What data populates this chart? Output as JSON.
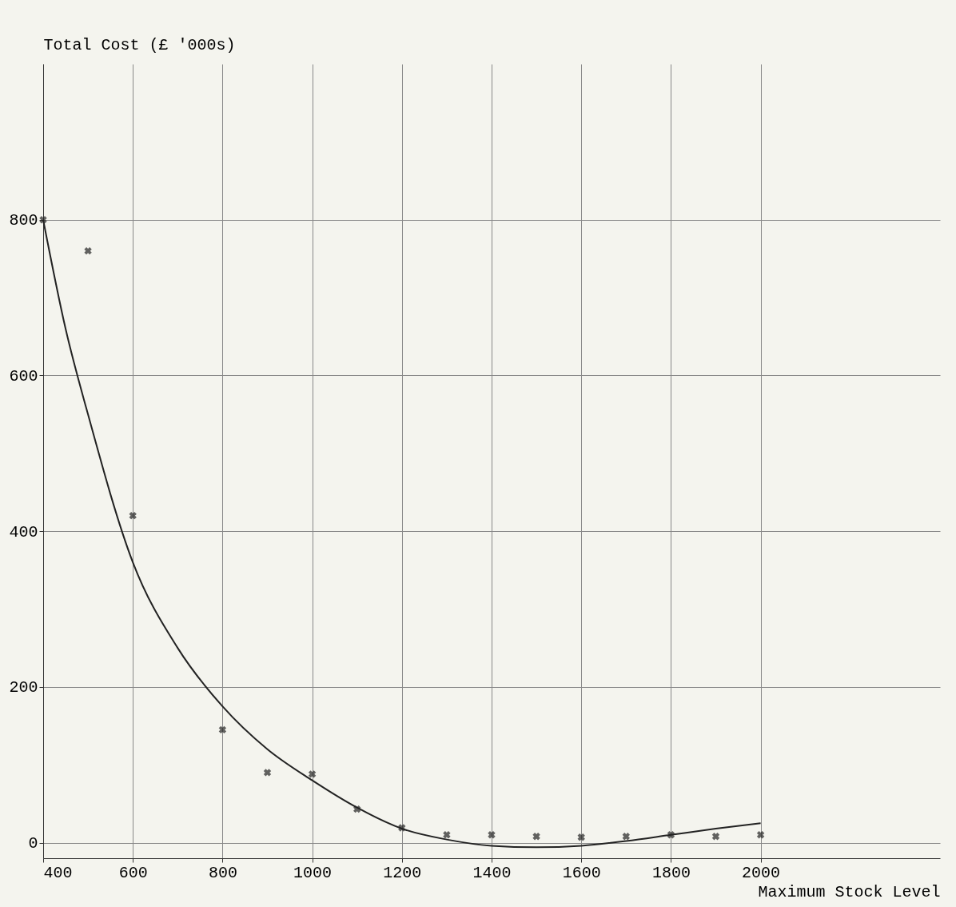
{
  "chart_data": {
    "type": "scatter",
    "xlabel": "Maximum Stock Level",
    "ylabel": "Total Cost (£ '000s)",
    "xlim": [
      400,
      2400
    ],
    "ylim": [
      -20,
      1000
    ],
    "xticks": [
      400,
      600,
      800,
      1000,
      1200,
      1400,
      1600,
      1800,
      2000
    ],
    "yticks": [
      0,
      200,
      400,
      600,
      800
    ],
    "grid": true,
    "series": [
      {
        "marker": "cross",
        "color": "#222222",
        "x": [
          400,
          500,
          600,
          800,
          900,
          1000,
          1100,
          1200,
          1300,
          1400,
          1500,
          1600,
          1700,
          1800,
          1900,
          2000
        ],
        "values": [
          800,
          760,
          420,
          145,
          90,
          88,
          43,
          19,
          10,
          10,
          8,
          7,
          8,
          10,
          8,
          10
        ]
      },
      {
        "type": "line",
        "marker": "none",
        "color": "#222222",
        "x": [
          400,
          450,
          500,
          600,
          700,
          800,
          900,
          1000,
          1100,
          1200,
          1300,
          1400,
          1500,
          1600,
          1700,
          1800,
          1900,
          2000
        ],
        "values": [
          800,
          660,
          550,
          360,
          250,
          175,
          120,
          80,
          45,
          18,
          4,
          -4,
          -6,
          -4,
          2,
          10,
          18,
          25
        ]
      }
    ]
  }
}
